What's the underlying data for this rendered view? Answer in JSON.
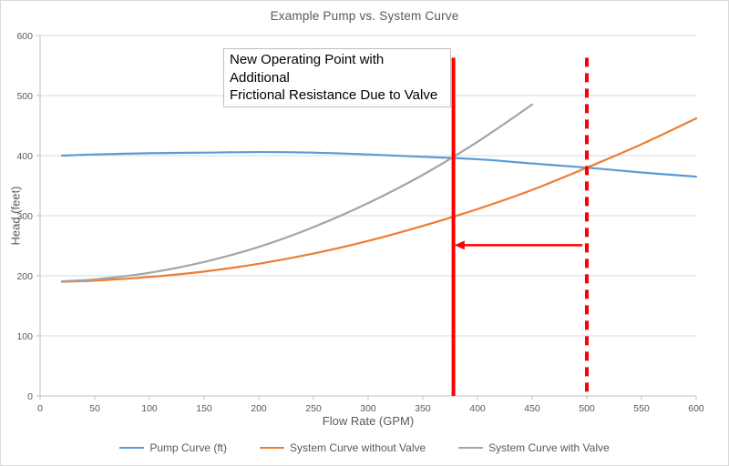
{
  "chart": {
    "title": "Example Pump vs. System Curve",
    "x_axis_title": "Flow Rate (GPM)",
    "y_axis_title": "Head (feet)"
  },
  "annotation": {
    "line1": "New Operating Point with Additional",
    "line2": "Frictional Resistance Due to Valve"
  },
  "chart_data": {
    "type": "line",
    "title": "Example Pump vs. System Curve",
    "xlabel": "Flow Rate (GPM)",
    "ylabel": "Head (feet)",
    "xlim": [
      0,
      600
    ],
    "ylim": [
      0,
      600
    ],
    "x_ticks": [
      0,
      50,
      100,
      150,
      200,
      250,
      300,
      350,
      400,
      450,
      500,
      550,
      600
    ],
    "y_ticks": [
      0,
      100,
      200,
      300,
      400,
      500,
      600
    ],
    "grid": "horizontal",
    "legend_position": "bottom",
    "gridline_color": "#D9D9D9",
    "axis_color": "#BFBFBF",
    "text_color": "#595959",
    "series": [
      {
        "name": "Pump Curve (ft)",
        "color": "#5B9BD5",
        "x": [
          20,
          50,
          100,
          150,
          200,
          250,
          300,
          350,
          400,
          450,
          500,
          550,
          600
        ],
        "y": [
          400,
          402,
          404,
          405,
          406,
          405,
          402,
          398,
          394,
          387,
          380,
          372,
          365
        ]
      },
      {
        "name": "System Curve without Valve",
        "color": "#ED7D31",
        "x": [
          20,
          50,
          100,
          150,
          200,
          250,
          300,
          350,
          400,
          450,
          500,
          550,
          600
        ],
        "y": [
          190,
          192,
          198,
          207,
          220,
          237,
          258,
          283,
          311,
          343,
          380,
          419,
          462
        ]
      },
      {
        "name": "System Curve with Valve",
        "color": "#A5A5A5",
        "x": [
          20,
          50,
          100,
          150,
          200,
          250,
          300,
          350,
          400,
          450
        ],
        "y": [
          191,
          194,
          205,
          223,
          248,
          281,
          321,
          368,
          423,
          485
        ]
      }
    ],
    "annotations": {
      "accent_color": "#FF0000",
      "new_operating_point_line": {
        "type": "vline",
        "x": 378,
        "y_from": 0,
        "y_to": 563,
        "style": "solid"
      },
      "old_operating_point_line": {
        "type": "vline",
        "x": 500,
        "y_from": 0,
        "y_to": 563,
        "style": "dashed"
      },
      "shift_arrow": {
        "type": "arrow",
        "y": 251,
        "x_from": 496,
        "x_to": 379,
        "direction": "left"
      },
      "text_box": "New Operating Point with Additional Frictional Resistance Due to Valve",
      "operating_points": [
        {
          "label": "new operating point (pump x system-with-valve)",
          "x": 378,
          "y": 398
        },
        {
          "label": "old operating point (pump x system-without-valve)",
          "x": 500,
          "y": 380
        }
      ]
    }
  }
}
